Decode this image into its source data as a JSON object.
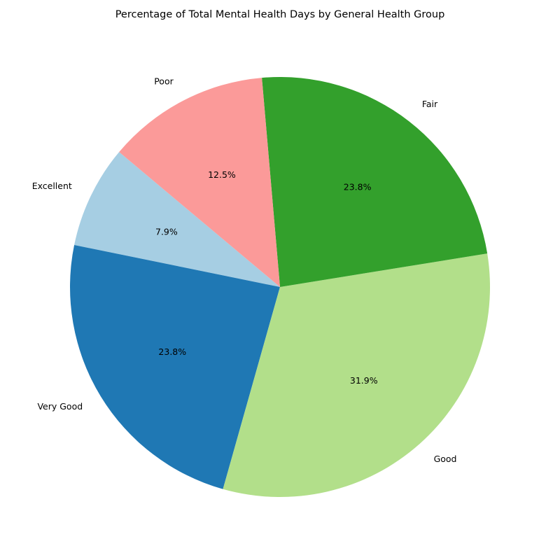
{
  "chart_data": {
    "type": "pie",
    "title": "Percentage of Total Mental Health Days by General Health Group",
    "slices": [
      {
        "label": "Excellent",
        "value": 7.9,
        "pct_label": "7.9%",
        "color": "#a6cee3"
      },
      {
        "label": "Very Good",
        "value": 23.8,
        "pct_label": "23.8%",
        "color": "#1f78b4"
      },
      {
        "label": "Good",
        "value": 31.9,
        "pct_label": "31.9%",
        "color": "#b2df8a"
      },
      {
        "label": "Fair",
        "value": 23.8,
        "pct_label": "23.8%",
        "color": "#33a02c"
      },
      {
        "label": "Poor",
        "value": 12.5,
        "pct_label": "12.5%",
        "color": "#fb9a99"
      }
    ],
    "start_angle_deg": 140,
    "direction": "counterclockwise",
    "legend": "none"
  }
}
